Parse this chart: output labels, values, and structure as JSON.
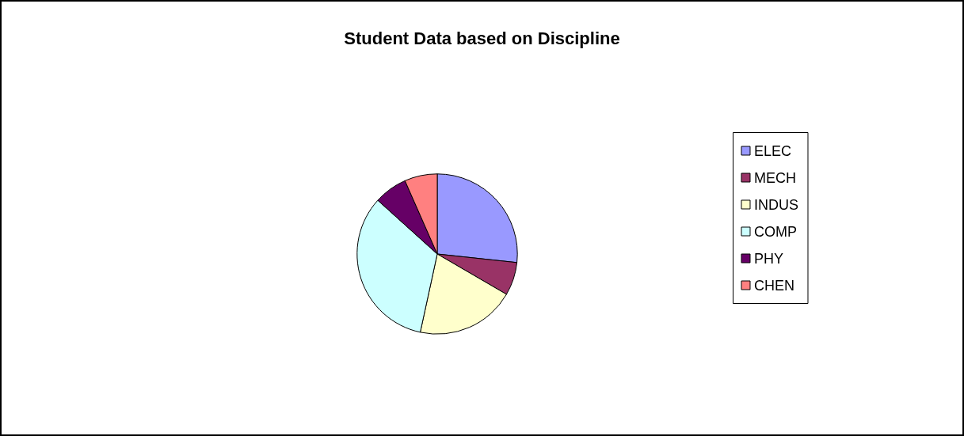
{
  "chart_data": {
    "type": "pie",
    "title": "Student Data based on Discipline",
    "categories": [
      "ELEC",
      "MECH",
      "INDUS",
      "COMP",
      "PHY",
      "CHEN"
    ],
    "values": [
      26.7,
      6.7,
      20,
      33.3,
      6.7,
      6.6
    ],
    "colors": [
      "#9999ff",
      "#993366",
      "#ffffcc",
      "#ccffff",
      "#660066",
      "#ff8080"
    ],
    "legend": "right"
  }
}
